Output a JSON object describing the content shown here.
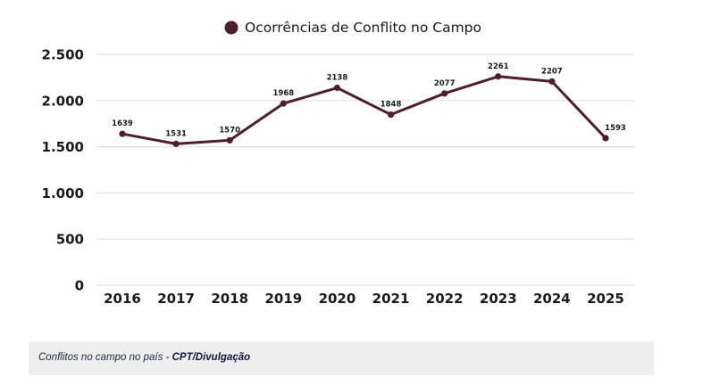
{
  "chart_data": {
    "type": "line",
    "title": "",
    "xlabel": "",
    "ylabel": "",
    "categories": [
      "2016",
      "2017",
      "2018",
      "2019",
      "2020",
      "2021",
      "2022",
      "2023",
      "2024",
      "2025"
    ],
    "series": [
      {
        "name": "Ocorrências de Conflito no Campo",
        "values": [
          1639,
          1531,
          1570,
          1968,
          2138,
          1848,
          2077,
          2261,
          2207,
          1593
        ],
        "color": "#4e1e2c"
      }
    ],
    "data_labels": [
      "1639",
      "1531",
      "1570",
      "1968",
      "2138",
      "1848",
      "2077",
      "2261",
      "2207",
      "1593"
    ],
    "ylim": [
      0,
      2500
    ],
    "yticks": [
      0,
      500,
      1000,
      1500,
      2000,
      2500
    ],
    "ytick_labels": [
      "0",
      "500",
      "1.000",
      "1.500",
      "2.000",
      "2.500"
    ],
    "grid": true,
    "legend": {
      "position": "top-center",
      "entries": [
        "Ocorrências de Conflito no Campo"
      ]
    }
  },
  "caption": {
    "text": "Conflitos no campo no país - ",
    "credit": "CPT/Divulgação"
  }
}
